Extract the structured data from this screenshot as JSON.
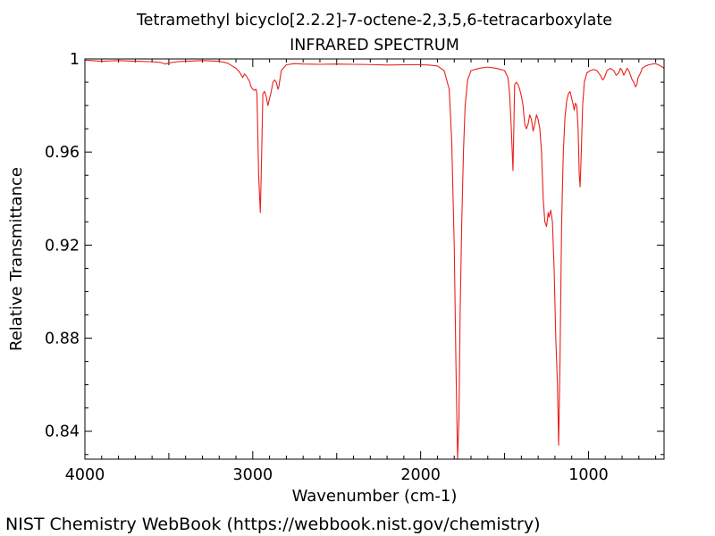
{
  "chart_data": {
    "type": "line",
    "title": "Tetramethyl bicyclo[2.2.2]-7-octene-2,3,5,6-tetracarboxylate",
    "subtitle": "INFRARED SPECTRUM",
    "xlabel": "Wavenumber (cm-1)",
    "ylabel": "Relative Transmittance",
    "xlim": [
      4000,
      550
    ],
    "ylim": [
      0.828,
      1.0
    ],
    "x_reversed": true,
    "grid": false,
    "xticks": [
      {
        "value": 4000,
        "label": "4000"
      },
      {
        "value": 3000,
        "label": "3000"
      },
      {
        "value": 2000,
        "label": "2000"
      },
      {
        "value": 1000,
        "label": "1000"
      }
    ],
    "yticks": [
      {
        "value": 1.0,
        "label": "1"
      },
      {
        "value": 0.96,
        "label": "0.96"
      },
      {
        "value": 0.92,
        "label": "0.92"
      },
      {
        "value": 0.88,
        "label": "0.88"
      },
      {
        "value": 0.84,
        "label": "0.84"
      }
    ],
    "series": [
      {
        "color": "#e8201c",
        "points": [
          [
            4000,
            0.9995
          ],
          [
            3900,
            0.999
          ],
          [
            3800,
            0.9993
          ],
          [
            3700,
            0.999
          ],
          [
            3600,
            0.9988
          ],
          [
            3550,
            0.9985
          ],
          [
            3520,
            0.9978
          ],
          [
            3500,
            0.9983
          ],
          [
            3450,
            0.9988
          ],
          [
            3400,
            0.999
          ],
          [
            3300,
            0.9993
          ],
          [
            3200,
            0.999
          ],
          [
            3150,
            0.9982
          ],
          [
            3100,
            0.996
          ],
          [
            3080,
            0.9945
          ],
          [
            3060,
            0.992
          ],
          [
            3050,
            0.9935
          ],
          [
            3040,
            0.9928
          ],
          [
            3020,
            0.9905
          ],
          [
            3010,
            0.988
          ],
          [
            3000,
            0.987
          ],
          [
            2990,
            0.9865
          ],
          [
            2980,
            0.987
          ],
          [
            2975,
            0.985
          ],
          [
            2965,
            0.95
          ],
          [
            2955,
            0.934
          ],
          [
            2948,
            0.956
          ],
          [
            2940,
            0.985
          ],
          [
            2930,
            0.986
          ],
          [
            2920,
            0.984
          ],
          [
            2910,
            0.98
          ],
          [
            2900,
            0.983
          ],
          [
            2890,
            0.986
          ],
          [
            2880,
            0.99
          ],
          [
            2870,
            0.991
          ],
          [
            2860,
            0.99
          ],
          [
            2850,
            0.987
          ],
          [
            2845,
            0.988
          ],
          [
            2830,
            0.995
          ],
          [
            2800,
            0.9975
          ],
          [
            2750,
            0.998
          ],
          [
            2700,
            0.9978
          ],
          [
            2600,
            0.9977
          ],
          [
            2500,
            0.9978
          ],
          [
            2400,
            0.9977
          ],
          [
            2300,
            0.9976
          ],
          [
            2200,
            0.9974
          ],
          [
            2100,
            0.9975
          ],
          [
            2000,
            0.9975
          ],
          [
            1950,
            0.9974
          ],
          [
            1900,
            0.997
          ],
          [
            1860,
            0.995
          ],
          [
            1830,
            0.987
          ],
          [
            1815,
            0.965
          ],
          [
            1800,
            0.92
          ],
          [
            1790,
            0.87
          ],
          [
            1780,
            0.828
          ],
          [
            1772,
            0.845
          ],
          [
            1765,
            0.89
          ],
          [
            1755,
            0.93
          ],
          [
            1745,
            0.96
          ],
          [
            1735,
            0.98
          ],
          [
            1720,
            0.991
          ],
          [
            1700,
            0.995
          ],
          [
            1650,
            0.996
          ],
          [
            1600,
            0.9965
          ],
          [
            1550,
            0.996
          ],
          [
            1500,
            0.995
          ],
          [
            1480,
            0.992
          ],
          [
            1470,
            0.985
          ],
          [
            1460,
            0.97
          ],
          [
            1450,
            0.952
          ],
          [
            1445,
            0.97
          ],
          [
            1440,
            0.989
          ],
          [
            1430,
            0.99
          ],
          [
            1420,
            0.989
          ],
          [
            1410,
            0.987
          ],
          [
            1400,
            0.984
          ],
          [
            1390,
            0.98
          ],
          [
            1380,
            0.972
          ],
          [
            1370,
            0.97
          ],
          [
            1360,
            0.972
          ],
          [
            1350,
            0.976
          ],
          [
            1340,
            0.974
          ],
          [
            1330,
            0.969
          ],
          [
            1320,
            0.972
          ],
          [
            1310,
            0.976
          ],
          [
            1300,
            0.974
          ],
          [
            1290,
            0.97
          ],
          [
            1280,
            0.96
          ],
          [
            1270,
            0.94
          ],
          [
            1260,
            0.93
          ],
          [
            1250,
            0.928
          ],
          [
            1240,
            0.934
          ],
          [
            1235,
            0.932
          ],
          [
            1225,
            0.935
          ],
          [
            1215,
            0.93
          ],
          [
            1205,
            0.91
          ],
          [
            1195,
            0.88
          ],
          [
            1185,
            0.86
          ],
          [
            1178,
            0.834
          ],
          [
            1170,
            0.87
          ],
          [
            1160,
            0.93
          ],
          [
            1150,
            0.96
          ],
          [
            1140,
            0.975
          ],
          [
            1130,
            0.982
          ],
          [
            1120,
            0.985
          ],
          [
            1110,
            0.986
          ],
          [
            1100,
            0.983
          ],
          [
            1090,
            0.98
          ],
          [
            1085,
            0.978
          ],
          [
            1078,
            0.981
          ],
          [
            1070,
            0.98
          ],
          [
            1062,
            0.97
          ],
          [
            1055,
            0.95
          ],
          [
            1050,
            0.945
          ],
          [
            1043,
            0.96
          ],
          [
            1035,
            0.98
          ],
          [
            1025,
            0.99
          ],
          [
            1010,
            0.994
          ],
          [
            990,
            0.995
          ],
          [
            970,
            0.9955
          ],
          [
            950,
            0.995
          ],
          [
            930,
            0.993
          ],
          [
            915,
            0.991
          ],
          [
            905,
            0.992
          ],
          [
            890,
            0.995
          ],
          [
            870,
            0.996
          ],
          [
            850,
            0.995
          ],
          [
            835,
            0.993
          ],
          [
            820,
            0.994
          ],
          [
            810,
            0.996
          ],
          [
            800,
            0.995
          ],
          [
            790,
            0.993
          ],
          [
            780,
            0.9945
          ],
          [
            770,
            0.996
          ],
          [
            760,
            0.995
          ],
          [
            750,
            0.993
          ],
          [
            740,
            0.991
          ],
          [
            730,
            0.99
          ],
          [
            720,
            0.988
          ],
          [
            712,
            0.989
          ],
          [
            705,
            0.992
          ],
          [
            690,
            0.994
          ],
          [
            680,
            0.996
          ],
          [
            660,
            0.997
          ],
          [
            640,
            0.9975
          ],
          [
            620,
            0.9978
          ],
          [
            600,
            0.998
          ],
          [
            585,
            0.9975
          ],
          [
            570,
            0.997
          ],
          [
            560,
            0.9965
          ],
          [
            550,
            0.996
          ]
        ]
      }
    ]
  },
  "footer": "NIST Chemistry WebBook (https://webbook.nist.gov/chemistry)"
}
